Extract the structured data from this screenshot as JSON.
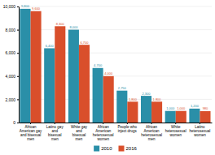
{
  "chart_data": {
    "type": "bar",
    "categories": [
      "African\nAmerican gay\nand bisexual\nmen",
      "Latino gay\nand\nbisexual\nmen",
      "White gay\nand\nbisexual\nmen",
      "African\nAmerican\nheterosexual\nwomen",
      "People who\ninject drugs",
      "African\nAmerican\nheterosexual\nmen",
      "White\nheterosexual\nwomen",
      "Latino\nheterosexual\nwomen"
    ],
    "series": [
      {
        "name": "2010",
        "color": "#2a8fa8",
        "values": [
          9800,
          6400,
          8000,
          4700,
          2750,
          2300,
          1000,
          1200
        ],
        "value_labels": [
          "9,800",
          "6,400",
          "8,000",
          "4,700",
          "2,750",
          "2,300",
          "1,000",
          "1,200"
        ]
      },
      {
        "name": "2016",
        "color": "#d94f2b",
        "values": [
          9600,
          8300,
          6700,
          4000,
          1800,
          1800,
          1000,
          980
        ],
        "value_labels": [
          "9,600",
          "8,300",
          "6,700",
          "4,000",
          "1,800",
          "1,800",
          "1,000",
          "980"
        ]
      }
    ],
    "ylim": [
      0,
      10000
    ],
    "yticks": [
      0,
      {
        "value": 2000,
        "label": "2,000"
      },
      {
        "value": 4000,
        "label": "4,000"
      },
      {
        "value": 6000,
        "label": "6,000"
      },
      {
        "value": 8000,
        "label": "8,000"
      },
      {
        "value": 10000,
        "label": "10,000"
      }
    ],
    "grid": true,
    "data_labels": true,
    "legend": "bottom"
  }
}
